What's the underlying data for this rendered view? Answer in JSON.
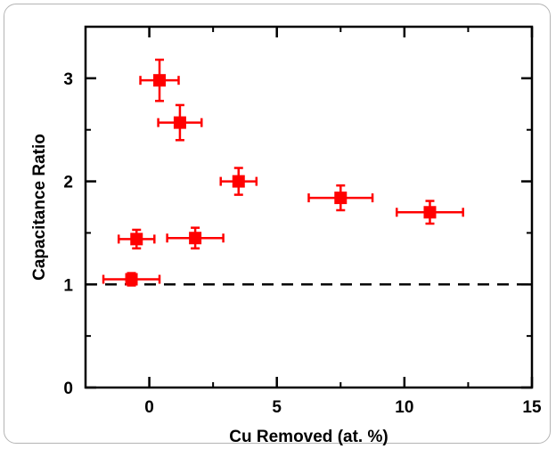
{
  "chart_data": {
    "type": "scatter",
    "title": "",
    "xlabel": "Cu Removed (at. %)",
    "ylabel": "Capacitance Ratio",
    "xlim": [
      -2.5,
      15
    ],
    "ylim": [
      0,
      3.5
    ],
    "xticks": [
      0,
      5,
      10,
      15
    ],
    "yticks": [
      0,
      1,
      2,
      3
    ],
    "grid": false,
    "reference_line": {
      "y": 1,
      "style": "dashed",
      "color": "#000000"
    },
    "marker": {
      "shape": "square",
      "color": "#ff0000"
    },
    "series": [
      {
        "points": [
          {
            "x": 0.4,
            "y": 2.98,
            "xerr": 0.75,
            "yerr": 0.2
          },
          {
            "x": 1.2,
            "y": 2.57,
            "xerr": 0.85,
            "yerr": 0.17
          },
          {
            "x": 3.5,
            "y": 2.0,
            "xerr": 0.7,
            "yerr": 0.13
          },
          {
            "x": 7.5,
            "y": 1.84,
            "xerr": 1.25,
            "yerr": 0.12
          },
          {
            "x": 11.0,
            "y": 1.7,
            "xerr": 1.3,
            "yerr": 0.11
          },
          {
            "x": -0.5,
            "y": 1.44,
            "xerr": 0.7,
            "yerr": 0.09
          },
          {
            "x": 1.8,
            "y": 1.45,
            "xerr": 1.1,
            "yerr": 0.1
          },
          {
            "x": -0.7,
            "y": 1.05,
            "xerr": 1.1,
            "yerr": 0.06
          }
        ]
      }
    ]
  }
}
